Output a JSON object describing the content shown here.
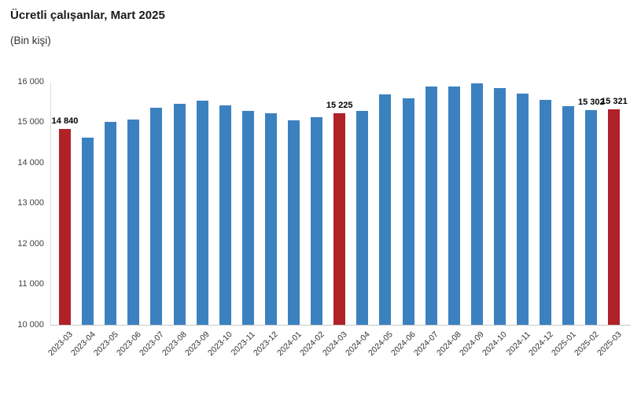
{
  "header": {
    "title": "Ücretli çalışanlar, Mart 2025",
    "subtitle": "(Bin kişi)"
  },
  "chart_data": {
    "type": "bar",
    "title": "Ücretli çalışanlar, Mart 2025",
    "subtitle": "(Bin kişi)",
    "unit": "Bin kişi",
    "categories": [
      "2023-03",
      "2023-04",
      "2023-05",
      "2023-06",
      "2023-07",
      "2023-08",
      "2023-09",
      "2023-10",
      "2023-11",
      "2023-12",
      "2024-01",
      "2024-02",
      "2024-03",
      "2024-04",
      "2024-05",
      "2024-06",
      "2024-07",
      "2024-08",
      "2024-09",
      "2024-10",
      "2024-11",
      "2024-12",
      "2025-01",
      "2025-02",
      "2025-03"
    ],
    "values": [
      14840,
      14625,
      15020,
      15080,
      15360,
      15470,
      15540,
      15435,
      15290,
      15235,
      15060,
      15130,
      15225,
      15285,
      15695,
      15610,
      15900,
      15890,
      15975,
      15845,
      15715,
      15565,
      15415,
      15302,
      15321
    ],
    "highlighted_categories": [
      "2023-03",
      "2024-03",
      "2025-03"
    ],
    "data_labels": {
      "2023-03": "14 840",
      "2024-03": "15 225",
      "2025-02": "15 302",
      "2025-03": "15 321"
    },
    "ylim": [
      10000,
      16000
    ],
    "grid": false,
    "legend": false,
    "yticks": [
      {
        "value": 16000,
        "label": "16 000"
      },
      {
        "value": 15000,
        "label": "15 000"
      },
      {
        "value": 14000,
        "label": "14 000"
      },
      {
        "value": 13000,
        "label": "13 000"
      },
      {
        "value": 12000,
        "label": "12 000"
      },
      {
        "value": 11000,
        "label": "11 000"
      },
      {
        "value": 10000,
        "label": "10 000"
      }
    ],
    "colors": {
      "bar": "#3C81BF",
      "highlight": "#B02128",
      "axis_line": "#d9d9d9",
      "tick_text": "#404040",
      "data_label_text": "#000000",
      "title_text": "#1a1a1a"
    }
  }
}
